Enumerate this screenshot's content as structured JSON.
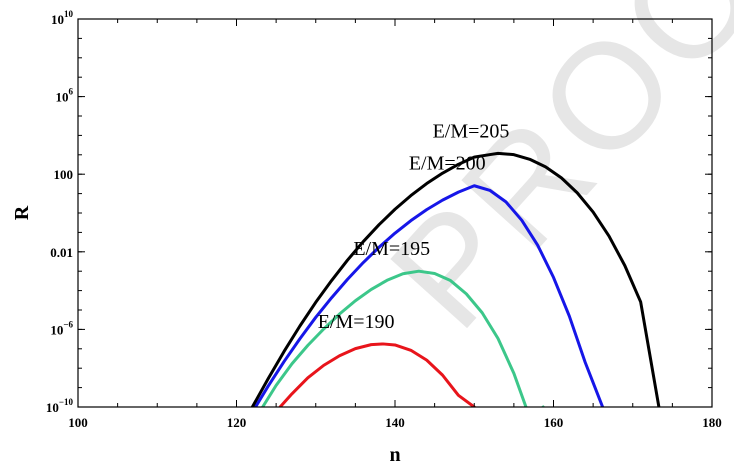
{
  "chart_data": {
    "type": "line",
    "title": "",
    "xlabel": "n",
    "ylabel": "R",
    "xlim": [
      100,
      180
    ],
    "ylim": [
      1e-10,
      10000000000.0
    ],
    "yscale": "log",
    "grid": false,
    "watermark": "PROOF",
    "x_ticks": [
      100,
      120,
      140,
      160,
      180
    ],
    "x_tick_labels": [
      "100",
      "120",
      "140",
      "160",
      "180"
    ],
    "y_ticks": [
      {
        "value": 1e-10,
        "base": "10",
        "exp": "−10"
      },
      {
        "value": 1e-06,
        "base": "10",
        "exp": "−6"
      },
      {
        "value": 0.01,
        "base": "0.01",
        "exp": ""
      },
      {
        "value": 100,
        "base": "100",
        "exp": ""
      },
      {
        "value": 1000000.0,
        "base": "10",
        "exp": "6"
      },
      {
        "value": 10000000000.0,
        "base": "10",
        "exp": "10"
      }
    ],
    "series": [
      {
        "name": "E/M=190",
        "color": "#e8141b",
        "x": [
          125.5,
          127,
          129,
          131,
          133,
          135,
          137,
          138.5,
          140,
          142,
          144,
          146,
          148,
          150
        ],
        "y": [
          1e-10,
          4.8e-10,
          3.2e-09,
          1.4e-08,
          4.4e-08,
          1.02e-07,
          1.64e-07,
          1.78e-07,
          1.58e-07,
          8.4e-08,
          2.6e-08,
          4.4e-09,
          4e-10,
          1e-10
        ]
      },
      {
        "name": "E/M=195",
        "color": "#3cc78a",
        "x": [
          123.3,
          125,
          127,
          129,
          131,
          133,
          135,
          137,
          139,
          141,
          143,
          145,
          147,
          149,
          151,
          153,
          155,
          157,
          158.7
        ],
        "y": [
          1e-10,
          1.3e-09,
          1.7e-08,
          1.5e-07,
          1.05e-06,
          6.2e-06,
          3e-05,
          0.000115,
          0.00034,
          0.00074,
          0.001,
          0.00076,
          0.00033,
          6.8e-05,
          7.2e-06,
          3.4e-07,
          5.4e-09,
          2.9e-11,
          1e-10
        ]
      },
      {
        "name": "E/M=200",
        "color": "#1616e8",
        "x": [
          122.4,
          124,
          126,
          128,
          130,
          132,
          134,
          136,
          138,
          140,
          142,
          144,
          146,
          148,
          150,
          152,
          154,
          156,
          158,
          160,
          162,
          164,
          166.2
        ],
        "y": [
          1e-10,
          1.2e-09,
          2.2e-08,
          3.3e-07,
          4.2e-06,
          4.3e-05,
          0.00038,
          0.0028,
          0.0174,
          0.0915,
          0.403,
          1.49,
          4.6,
          11.9,
          25.4,
          14.5,
          3.75,
          0.42,
          0.022,
          0.00048,
          4.8e-06,
          2e-08,
          1e-10
        ]
      },
      {
        "name": "E/M=205",
        "color": "#000000",
        "x": [
          122,
          124,
          126,
          128,
          130,
          132,
          134,
          136,
          138,
          140,
          142,
          144,
          146,
          148,
          150,
          152,
          153,
          155,
          157,
          159,
          161,
          163,
          165,
          167,
          169,
          171,
          173.3
        ],
        "y": [
          1e-10,
          2.9e-09,
          7.3e-08,
          1.5e-06,
          2.5e-05,
          0.00033,
          0.0037,
          0.0338,
          0.253,
          1.56,
          7.9,
          33,
          113,
          322,
          758,
          1030,
          1180,
          1020,
          587,
          239,
          64.5,
          10.9,
          1.12,
          0.065,
          0.00194,
          2.6e-05,
          1e-10
        ]
      }
    ],
    "annotations": [
      {
        "text": "E/M=205",
        "series": 3
      },
      {
        "text": "E/M=200",
        "series": 2
      },
      {
        "text": "E/M=195",
        "series": 1
      },
      {
        "text": "E/M=190",
        "series": 0
      }
    ]
  }
}
